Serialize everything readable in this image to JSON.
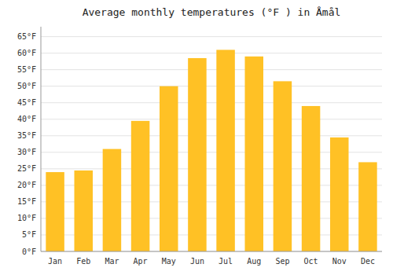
{
  "chart_data": {
    "type": "bar",
    "title": "Average monthly temperatures (°F ) in Åmål",
    "categories": [
      "Jan",
      "Feb",
      "Mar",
      "Apr",
      "May",
      "Jun",
      "Jul",
      "Aug",
      "Sep",
      "Oct",
      "Nov",
      "Dec"
    ],
    "values": [
      24,
      24.5,
      31,
      39.5,
      50,
      58.5,
      61,
      59,
      51.5,
      44,
      34.5,
      27
    ],
    "color": "#FFC125",
    "ylim": [
      0,
      68
    ],
    "yticks": [
      {
        "value": 0,
        "label": "0°F"
      },
      {
        "value": 5,
        "label": "5°F"
      },
      {
        "value": 10,
        "label": "10°F"
      },
      {
        "value": 15,
        "label": "15°F"
      },
      {
        "value": 20,
        "label": "20°F"
      },
      {
        "value": 25,
        "label": "25°F"
      },
      {
        "value": 30,
        "label": "30°F"
      },
      {
        "value": 35,
        "label": "35°F"
      },
      {
        "value": 40,
        "label": "40°F"
      },
      {
        "value": 45,
        "label": "45°F"
      },
      {
        "value": 50,
        "label": "50°F"
      },
      {
        "value": 55,
        "label": "55°F"
      },
      {
        "value": 60,
        "label": "60°F"
      },
      {
        "value": 65,
        "label": "65°F"
      }
    ],
    "grid": true
  }
}
